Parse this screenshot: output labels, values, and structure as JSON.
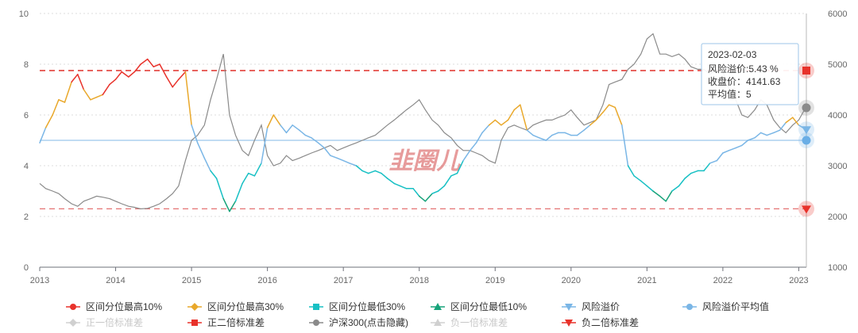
{
  "chart_data": {
    "type": "line",
    "x_axis": {
      "type": "time",
      "ticks": [
        "2013",
        "2014",
        "2015",
        "2016",
        "2017",
        "2018",
        "2019",
        "2020",
        "2021",
        "2022",
        "2023"
      ]
    },
    "y_left": {
      "ylim": [
        0,
        10
      ],
      "ticks": [
        "0",
        "2",
        "4",
        "6",
        "8",
        "10"
      ]
    },
    "y_right": {
      "ylim": [
        1000,
        6000
      ],
      "ticks": [
        "1000",
        "2000",
        "3000",
        "4000",
        "5000",
        "6000"
      ]
    },
    "grid": true,
    "legend_position": "bottom",
    "legend": [
      {
        "label": "区间分位最高10%",
        "color": "#e8322b",
        "marker": "circle",
        "enabled": true
      },
      {
        "label": "区间分位最高30%",
        "color": "#e9a82b",
        "marker": "diamond",
        "enabled": true
      },
      {
        "label": "区间分位最低30%",
        "color": "#18c0c4",
        "marker": "square",
        "enabled": true
      },
      {
        "label": "区间分位最低10%",
        "color": "#17a37a",
        "marker": "triangle",
        "enabled": true
      },
      {
        "label": "风险溢价",
        "color": "#7ab6e6",
        "marker": "triangle-down",
        "enabled": true
      },
      {
        "label": "风险溢价平均值",
        "color": "#7ab6e6",
        "marker": "circle",
        "enabled": true
      },
      {
        "label": "正一倍标准差",
        "color": "#c8c8c8",
        "marker": "diamond",
        "enabled": false
      },
      {
        "label": "正二倍标准差",
        "color": "#e8322b",
        "marker": "square",
        "enabled": true
      },
      {
        "label": "沪深300(点击隐藏)",
        "color": "#8a8a8a",
        "marker": "circle",
        "enabled": true
      },
      {
        "label": "负一倍标准差",
        "color": "#c8c8c8",
        "marker": "triangle",
        "enabled": false
      },
      {
        "label": "负二倍标准差",
        "color": "#e8322b",
        "marker": "triangle-down",
        "enabled": true
      }
    ],
    "reference_lines": {
      "mean": 5.0,
      "plus_2std": 7.75,
      "minus_2std": 2.3
    },
    "series": [
      {
        "name": "风险溢价",
        "axis": "left",
        "x": [
          2013.0,
          2013.08,
          2013.17,
          2013.25,
          2013.33,
          2013.42,
          2013.5,
          2013.58,
          2013.67,
          2013.75,
          2013.83,
          2013.92,
          2014.0,
          2014.08,
          2014.17,
          2014.25,
          2014.33,
          2014.42,
          2014.5,
          2014.58,
          2014.67,
          2014.75,
          2014.83,
          2014.92,
          2015.0,
          2015.08,
          2015.17,
          2015.25,
          2015.33,
          2015.42,
          2015.5,
          2015.58,
          2015.67,
          2015.75,
          2015.83,
          2015.92,
          2016.0,
          2016.08,
          2016.17,
          2016.25,
          2016.33,
          2016.42,
          2016.5,
          2016.58,
          2016.67,
          2016.75,
          2016.83,
          2016.92,
          2017.0,
          2017.08,
          2017.17,
          2017.25,
          2017.33,
          2017.42,
          2017.5,
          2017.58,
          2017.67,
          2017.75,
          2017.83,
          2017.92,
          2018.0,
          2018.08,
          2018.17,
          2018.25,
          2018.33,
          2018.42,
          2018.5,
          2018.58,
          2018.67,
          2018.75,
          2018.83,
          2018.92,
          2019.0,
          2019.08,
          2019.17,
          2019.25,
          2019.33,
          2019.42,
          2019.5,
          2019.58,
          2019.67,
          2019.75,
          2019.83,
          2019.92,
          2020.0,
          2020.08,
          2020.17,
          2020.25,
          2020.33,
          2020.42,
          2020.5,
          2020.58,
          2020.67,
          2020.75,
          2020.83,
          2020.92,
          2021.0,
          2021.08,
          2021.17,
          2021.25,
          2021.33,
          2021.42,
          2021.5,
          2021.58,
          2021.67,
          2021.75,
          2021.83,
          2021.92,
          2022.0,
          2022.08,
          2022.17,
          2022.25,
          2022.33,
          2022.42,
          2022.5,
          2022.58,
          2022.67,
          2022.75,
          2022.83,
          2022.92,
          2023.0,
          2023.09
        ],
        "values": [
          4.9,
          5.5,
          6.0,
          6.6,
          6.5,
          7.3,
          7.6,
          7.0,
          6.6,
          6.7,
          6.8,
          7.2,
          7.4,
          7.7,
          7.5,
          7.7,
          8.0,
          8.2,
          7.9,
          8.0,
          7.5,
          7.1,
          7.4,
          7.7,
          5.6,
          4.9,
          4.3,
          3.8,
          3.5,
          2.7,
          2.2,
          2.6,
          3.3,
          3.7,
          3.6,
          4.1,
          5.5,
          6.0,
          5.6,
          5.3,
          5.6,
          5.4,
          5.2,
          5.1,
          4.9,
          4.7,
          4.4,
          4.3,
          4.2,
          4.1,
          4.0,
          3.8,
          3.7,
          3.8,
          3.7,
          3.5,
          3.3,
          3.2,
          3.1,
          3.1,
          2.8,
          2.6,
          2.9,
          3.0,
          3.2,
          3.6,
          3.7,
          4.2,
          4.6,
          4.9,
          5.3,
          5.6,
          5.8,
          5.6,
          5.8,
          6.2,
          6.4,
          5.4,
          5.2,
          5.1,
          5.0,
          5.2,
          5.3,
          5.3,
          5.2,
          5.2,
          5.4,
          5.6,
          5.8,
          6.1,
          6.4,
          6.3,
          5.6,
          4.0,
          3.6,
          3.4,
          3.2,
          3.0,
          2.8,
          2.6,
          3.0,
          3.2,
          3.5,
          3.7,
          3.8,
          3.8,
          4.1,
          4.2,
          4.5,
          4.6,
          4.7,
          4.8,
          5.0,
          5.1,
          5.3,
          5.2,
          5.3,
          5.4,
          5.7,
          5.9,
          5.6,
          5.43
        ]
      },
      {
        "name": "沪深300(点击隐藏)",
        "axis": "right",
        "x": [
          2013.0,
          2013.08,
          2013.17,
          2013.25,
          2013.33,
          2013.42,
          2013.5,
          2013.58,
          2013.67,
          2013.75,
          2013.83,
          2013.92,
          2014.0,
          2014.08,
          2014.17,
          2014.25,
          2014.33,
          2014.42,
          2014.5,
          2014.58,
          2014.67,
          2014.75,
          2014.83,
          2014.92,
          2015.0,
          2015.08,
          2015.17,
          2015.25,
          2015.33,
          2015.42,
          2015.5,
          2015.58,
          2015.67,
          2015.75,
          2015.83,
          2015.92,
          2016.0,
          2016.08,
          2016.17,
          2016.25,
          2016.33,
          2016.42,
          2016.5,
          2016.58,
          2016.67,
          2016.75,
          2016.83,
          2016.92,
          2017.0,
          2017.08,
          2017.17,
          2017.25,
          2017.33,
          2017.42,
          2017.5,
          2017.58,
          2017.67,
          2017.75,
          2017.83,
          2017.92,
          2018.0,
          2018.08,
          2018.17,
          2018.25,
          2018.33,
          2018.42,
          2018.5,
          2018.58,
          2018.67,
          2018.75,
          2018.83,
          2018.92,
          2019.0,
          2019.08,
          2019.17,
          2019.25,
          2019.33,
          2019.42,
          2019.5,
          2019.58,
          2019.67,
          2019.75,
          2019.83,
          2019.92,
          2020.0,
          2020.08,
          2020.17,
          2020.25,
          2020.33,
          2020.42,
          2020.5,
          2020.58,
          2020.67,
          2020.75,
          2020.83,
          2020.92,
          2021.0,
          2021.08,
          2021.17,
          2021.25,
          2021.33,
          2021.42,
          2021.5,
          2021.58,
          2021.67,
          2021.75,
          2021.83,
          2021.92,
          2022.0,
          2022.08,
          2022.17,
          2022.25,
          2022.33,
          2022.42,
          2022.5,
          2022.58,
          2022.67,
          2022.75,
          2022.83,
          2022.92,
          2023.0,
          2023.09
        ],
        "values": [
          2650,
          2550,
          2500,
          2450,
          2350,
          2250,
          2200,
          2300,
          2350,
          2400,
          2380,
          2350,
          2300,
          2250,
          2200,
          2180,
          2150,
          2160,
          2200,
          2250,
          2350,
          2450,
          2600,
          3100,
          3500,
          3600,
          3800,
          4300,
          4700,
          5200,
          4000,
          3600,
          3300,
          3200,
          3500,
          3800,
          3200,
          3000,
          3050,
          3200,
          3100,
          3150,
          3200,
          3250,
          3300,
          3350,
          3400,
          3300,
          3350,
          3400,
          3450,
          3500,
          3550,
          3600,
          3700,
          3800,
          3900,
          4000,
          4100,
          4200,
          4300,
          4100,
          3900,
          3800,
          3650,
          3550,
          3400,
          3300,
          3300,
          3250,
          3200,
          3100,
          3050,
          3500,
          3750,
          3800,
          3750,
          3700,
          3800,
          3850,
          3900,
          3900,
          3950,
          4000,
          4100,
          3950,
          3800,
          3850,
          3900,
          4200,
          4600,
          4650,
          4700,
          4900,
          5000,
          5200,
          5500,
          5600,
          5200,
          5200,
          5150,
          5200,
          5100,
          4950,
          4900,
          4900,
          4800,
          4900,
          4850,
          4500,
          4300,
          4000,
          3950,
          4100,
          4300,
          4200,
          3900,
          3750,
          3650,
          3800,
          3900,
          4141.63
        ]
      }
    ],
    "tooltip": {
      "date": "2023-02-03",
      "lines": [
        "风险溢价:5.43 %",
        "收盘价：4141.63",
        "平均值：5"
      ]
    },
    "watermark": "韭圈儿"
  }
}
